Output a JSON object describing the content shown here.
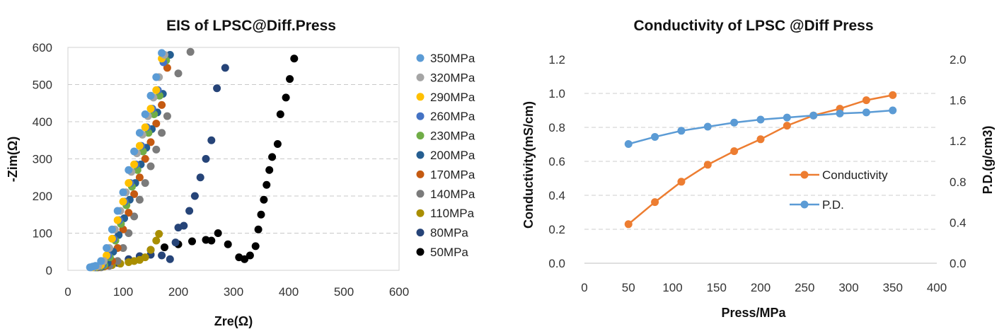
{
  "chart_data": [
    {
      "type": "scatter",
      "title": "EIS of LPSC@Diff.Press",
      "xlabel": "Zre(Ω)",
      "ylabel": "-Zim(Ω)",
      "xlim": [
        0,
        600
      ],
      "ylim": [
        0,
        600
      ],
      "xticks": [
        0,
        100,
        200,
        300,
        400,
        500,
        600
      ],
      "yticks": [
        0,
        100,
        200,
        300,
        400,
        500,
        600
      ],
      "legend_position": "right",
      "series": [
        {
          "name": "350MPa",
          "color": "#5B9BD5",
          "x": [
            40,
            45,
            50,
            60,
            70,
            80,
            90,
            100,
            110,
            120,
            130,
            140,
            150,
            160,
            170
          ],
          "y": [
            8,
            10,
            12,
            25,
            60,
            110,
            160,
            210,
            270,
            320,
            370,
            420,
            470,
            520,
            585
          ]
        },
        {
          "name": "320MPa",
          "color": "#A5A5A5",
          "x": [
            42,
            48,
            55,
            65,
            75,
            85,
            95,
            105,
            115,
            125,
            135,
            145,
            155,
            165,
            175
          ],
          "y": [
            8,
            10,
            12,
            25,
            60,
            110,
            160,
            210,
            265,
            315,
            365,
            415,
            465,
            520,
            580
          ]
        },
        {
          "name": "290MPa",
          "color": "#FFC000",
          "x": [
            45,
            52,
            60,
            70,
            80,
            90,
            100,
            110,
            120,
            130,
            140,
            150,
            160,
            170
          ],
          "y": [
            8,
            10,
            14,
            40,
            85,
            135,
            185,
            235,
            285,
            335,
            385,
            435,
            485,
            570
          ]
        },
        {
          "name": "260MPa",
          "color": "#4472C4",
          "x": [
            48,
            55,
            63,
            73,
            83,
            93,
            103,
            113,
            123,
            133,
            143,
            153,
            163,
            173
          ],
          "y": [
            8,
            10,
            14,
            40,
            85,
            135,
            185,
            235,
            285,
            335,
            385,
            435,
            485,
            560
          ]
        },
        {
          "name": "230MPa",
          "color": "#70AD47",
          "x": [
            50,
            58,
            66,
            76,
            86,
            96,
            106,
            116,
            126,
            136,
            146,
            156,
            166,
            178
          ],
          "y": [
            8,
            10,
            14,
            35,
            80,
            125,
            175,
            225,
            270,
            320,
            370,
            420,
            470,
            565
          ]
        },
        {
          "name": "200MPa",
          "color": "#255E91",
          "x": [
            52,
            62,
            72,
            82,
            92,
            102,
            112,
            122,
            132,
            142,
            152,
            162,
            172,
            185
          ],
          "y": [
            8,
            12,
            20,
            50,
            95,
            140,
            190,
            235,
            285,
            330,
            380,
            425,
            475,
            580
          ]
        },
        {
          "name": "170MPa",
          "color": "#C55A11",
          "x": [
            55,
            68,
            80,
            90,
            100,
            110,
            120,
            130,
            140,
            150,
            160,
            170,
            180
          ],
          "y": [
            8,
            12,
            25,
            60,
            110,
            155,
            205,
            250,
            300,
            345,
            395,
            445,
            545
          ]
        },
        {
          "name": "140MPa",
          "color": "#7B7B7B",
          "x": [
            60,
            75,
            90,
            100,
            110,
            120,
            130,
            140,
            150,
            160,
            170,
            180,
            200,
            222
          ],
          "y": [
            8,
            12,
            25,
            60,
            100,
            145,
            190,
            235,
            280,
            325,
            370,
            415,
            530,
            588
          ]
        },
        {
          "name": "110MPa",
          "color": "#A98E00",
          "x": [
            65,
            80,
            95,
            110,
            120,
            130,
            140,
            150,
            160,
            165
          ],
          "y": [
            10,
            14,
            18,
            22,
            25,
            28,
            35,
            55,
            80,
            98
          ]
        },
        {
          "name": "80MPa",
          "color": "#264478",
          "x": [
            50,
            70,
            90,
            110,
            130,
            150,
            170,
            185,
            195,
            200,
            210,
            220,
            230,
            240,
            250,
            260,
            270,
            285
          ],
          "y": [
            10,
            15,
            20,
            30,
            38,
            42,
            40,
            30,
            75,
            115,
            120,
            160,
            200,
            250,
            300,
            350,
            490,
            545
          ]
        },
        {
          "name": "50MPa",
          "color": "#000000",
          "x": [
            150,
            175,
            200,
            225,
            250,
            260,
            272,
            290,
            310,
            320,
            330,
            340,
            345,
            350,
            355,
            360,
            365,
            370,
            380,
            385,
            395,
            402,
            410
          ],
          "y": [
            55,
            62,
            70,
            78,
            82,
            80,
            100,
            70,
            35,
            30,
            40,
            65,
            110,
            150,
            190,
            230,
            270,
            305,
            340,
            420,
            465,
            515,
            570
          ]
        }
      ]
    },
    {
      "type": "line",
      "title": "Conductivity of LPSC @Diff Press",
      "xlabel": "Press/MPa",
      "ylabel": "Conductivity(mS/cm)",
      "y2label": "P.D.(g/cm3)",
      "xlim": [
        0,
        400
      ],
      "ylim": [
        0,
        1.2
      ],
      "y2lim": [
        0,
        2.0
      ],
      "xticks": [
        0,
        50,
        100,
        150,
        200,
        250,
        300,
        350,
        400
      ],
      "yticks": [
        "0.0",
        "0.2",
        "0.4",
        "0.6",
        "0.8",
        "1.0",
        "1.2"
      ],
      "y2ticks": [
        "0.0",
        "0.4",
        "0.8",
        "1.2",
        "1.6",
        "2.0"
      ],
      "legend_position": "center-right",
      "x": [
        50,
        80,
        110,
        140,
        170,
        200,
        230,
        260,
        290,
        320,
        350
      ],
      "series": [
        {
          "name": "Conductivity",
          "axis": "left",
          "color": "#ED7D31",
          "values": [
            0.23,
            0.36,
            0.48,
            0.58,
            0.66,
            0.73,
            0.81,
            0.87,
            0.91,
            0.96,
            0.99
          ]
        },
        {
          "name": "P.D.",
          "axis": "right",
          "color": "#5B9BD5",
          "values": [
            1.17,
            1.24,
            1.3,
            1.34,
            1.38,
            1.41,
            1.43,
            1.45,
            1.47,
            1.48,
            1.5
          ]
        }
      ]
    }
  ]
}
